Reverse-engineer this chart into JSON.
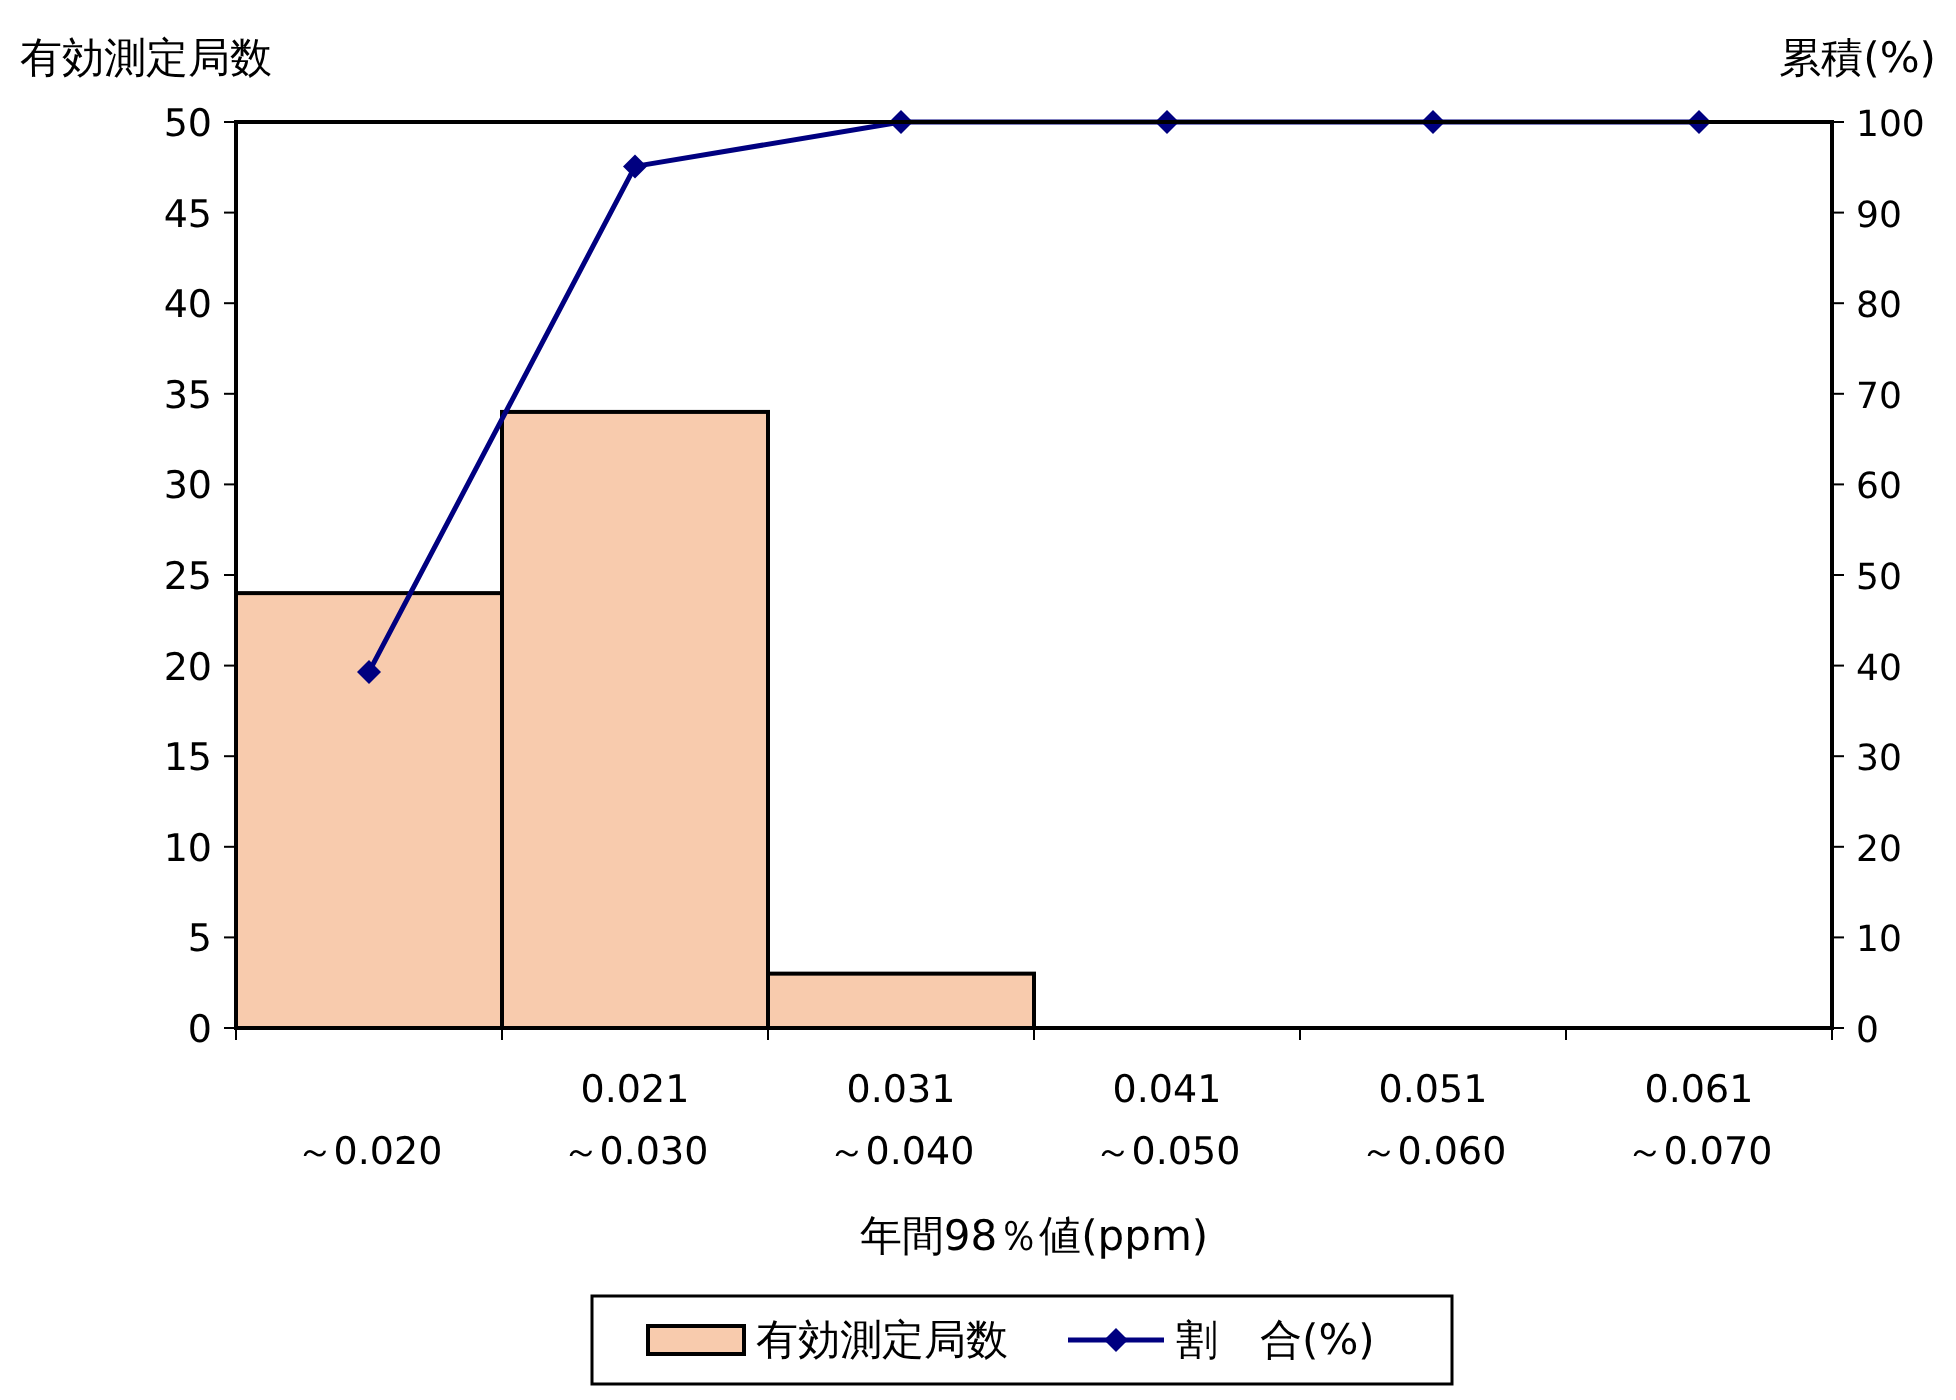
{
  "chart_data": {
    "type": "bar",
    "xlabel": "年間98％値(ppm)",
    "ylabel": "有効測定局数",
    "y2label": "累積(%)",
    "categories": [
      "～0.020",
      "0.021\n～0.030",
      "0.031\n～0.040",
      "0.041\n～0.050",
      "0.051\n～0.060",
      "0.061\n～0.070"
    ],
    "series": [
      {
        "name": "有効測定局数",
        "color": "#f8cbad",
        "values": [
          24,
          34,
          3,
          0,
          0,
          0
        ]
      },
      {
        "name": "割　合(%)",
        "type": "line",
        "axis": "y2",
        "color": "#000080",
        "marker": "diamond",
        "values": [
          39.3,
          95.1,
          100,
          100,
          100,
          100
        ]
      }
    ],
    "ylim": [
      0,
      50
    ],
    "yticks": [
      0,
      5,
      10,
      15,
      20,
      25,
      30,
      35,
      40,
      45,
      50
    ],
    "y2lim": [
      0,
      100
    ],
    "y2ticks": [
      0,
      10,
      20,
      30,
      40,
      50,
      60,
      70,
      80,
      90,
      100
    ],
    "grid": false,
    "legend": "bottom"
  }
}
